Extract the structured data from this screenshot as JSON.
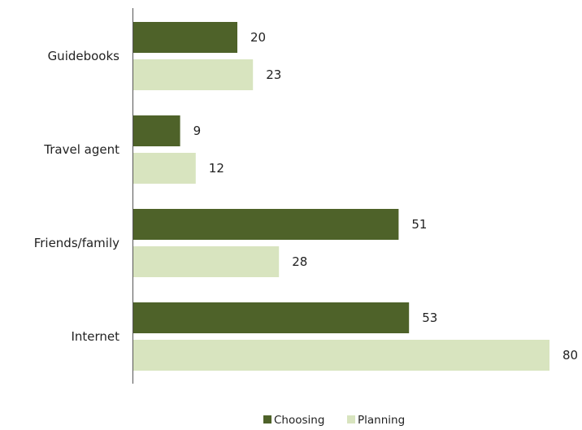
{
  "chart_data": {
    "type": "bar",
    "orientation": "horizontal",
    "categories": [
      "Guidebooks",
      "Travel agent",
      "Friends/family",
      "Internet"
    ],
    "series": [
      {
        "name": "Choosing",
        "values": [
          20,
          9,
          51,
          53
        ],
        "color": "#4e6229"
      },
      {
        "name": "Planning",
        "values": [
          23,
          12,
          28,
          80
        ],
        "color": "#d8e4bf"
      }
    ],
    "xlim": [
      0,
      80
    ],
    "grid": false,
    "legend_position": "bottom"
  }
}
